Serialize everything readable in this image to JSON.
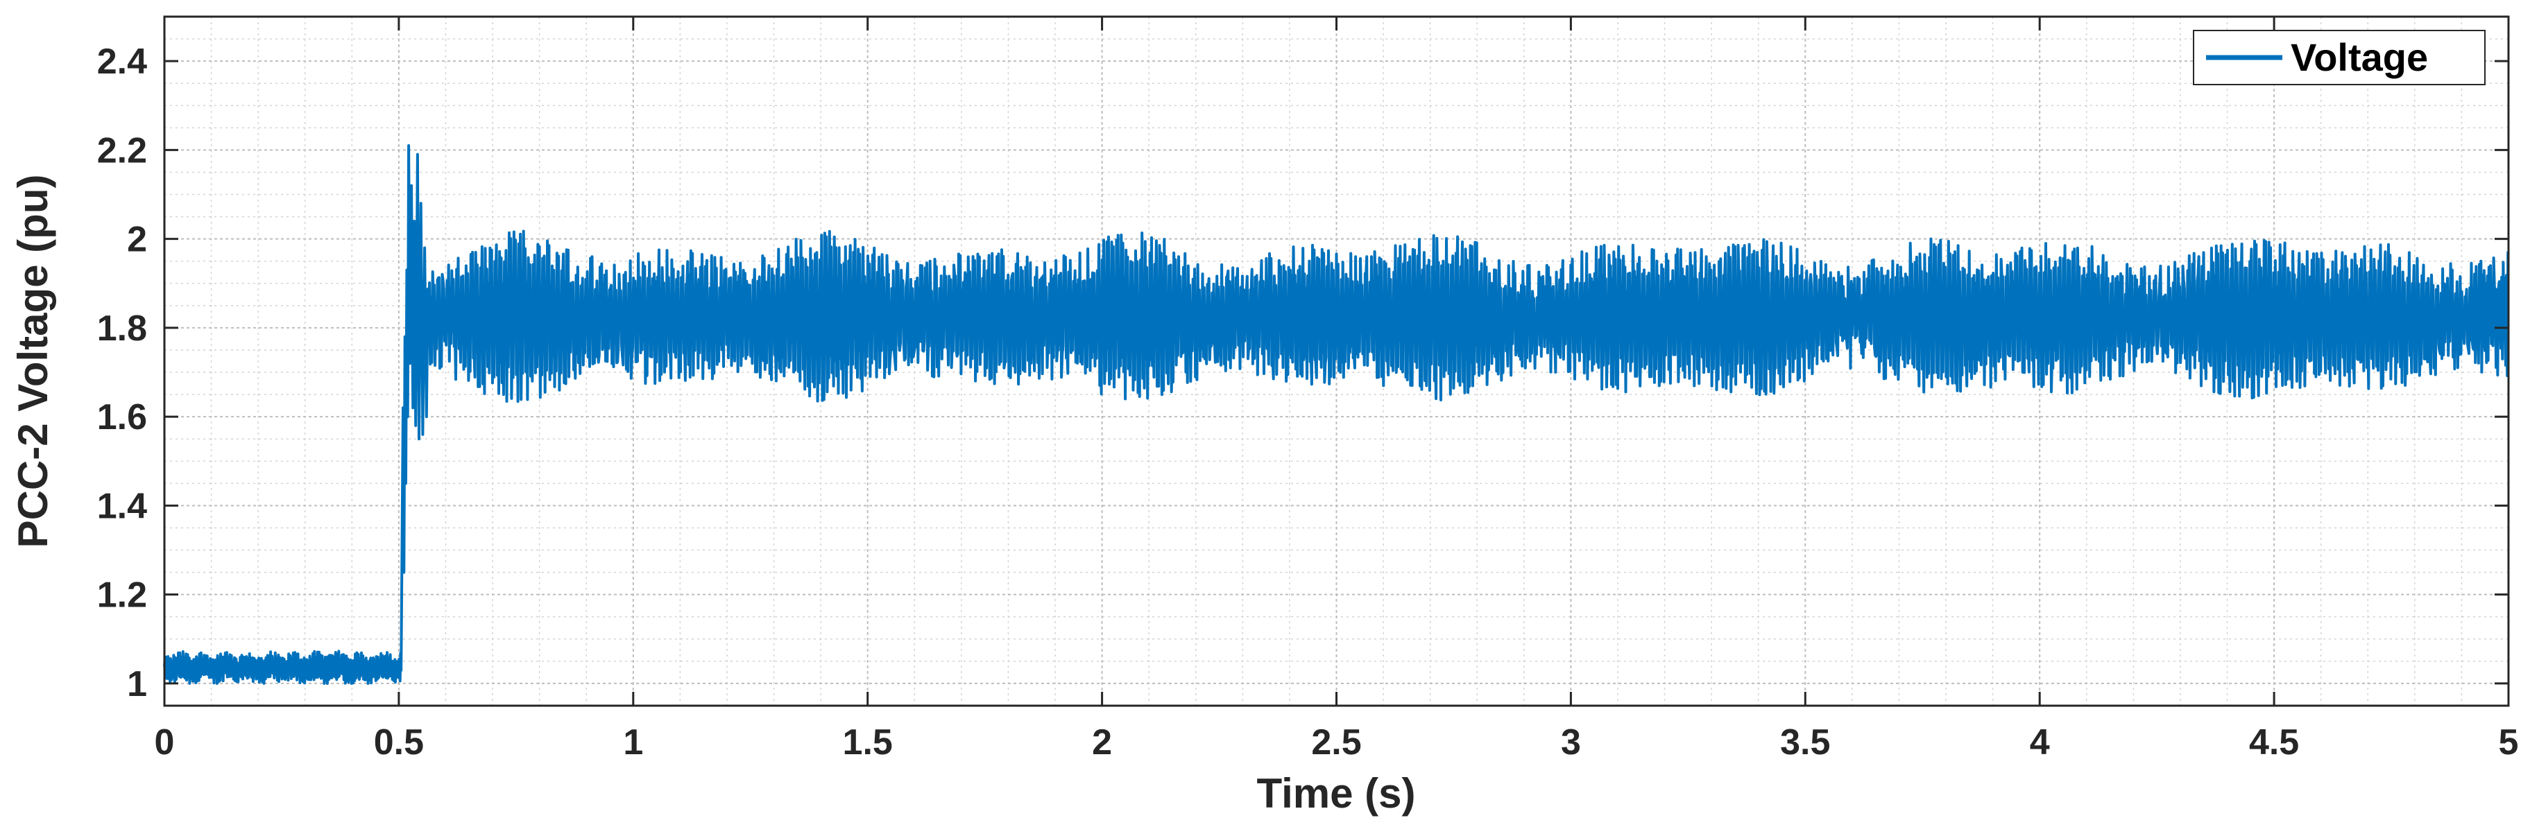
{
  "chart_data": {
    "type": "line",
    "title": "",
    "xlabel": "Time (s)",
    "ylabel": "PCC-2 Voltage (pu)",
    "xlim": [
      0,
      5
    ],
    "ylim": [
      0.95,
      2.5
    ],
    "xticks": [
      0,
      0.5,
      1,
      1.5,
      2,
      2.5,
      3,
      3.5,
      4,
      4.5,
      5
    ],
    "xtick_labels": [
      "0",
      "0.5",
      "1",
      "1.5",
      "2",
      "2.5",
      "3",
      "3.5",
      "4",
      "4.5",
      "5"
    ],
    "yticks": [
      1,
      1.2,
      1.4,
      1.6,
      1.8,
      2,
      2.2,
      2.4
    ],
    "ytick_labels": [
      "1",
      "1.2",
      "1.4",
      "1.6",
      "1.8",
      "2",
      "2.2",
      "2.4"
    ],
    "grid": true,
    "minor_grid": true,
    "legend_position": "top-right",
    "series": [
      {
        "name": "Voltage",
        "color": "#0072BD",
        "segments": [
          {
            "x_range": [
              0,
              0.505
            ],
            "behavior": "steady with small ripple",
            "mean": 1.035,
            "min": 1.0,
            "max": 1.075
          },
          {
            "x_range": [
              0.505,
              0.52
            ],
            "behavior": "sharp rise",
            "from": 1.05,
            "to": 1.95
          },
          {
            "x_range": [
              0.52,
              0.56
            ],
            "behavior": "transient overshoot",
            "peak_1": 2.21,
            "peak_2": 2.19,
            "min": 1.55
          },
          {
            "x_range": [
              0.56,
              5.0
            ],
            "behavior": "sustained oscillation",
            "mean": 1.82,
            "min": 1.62,
            "max": 2.03,
            "typical_peak": 1.98,
            "typical_trough": 1.67
          }
        ]
      }
    ]
  }
}
